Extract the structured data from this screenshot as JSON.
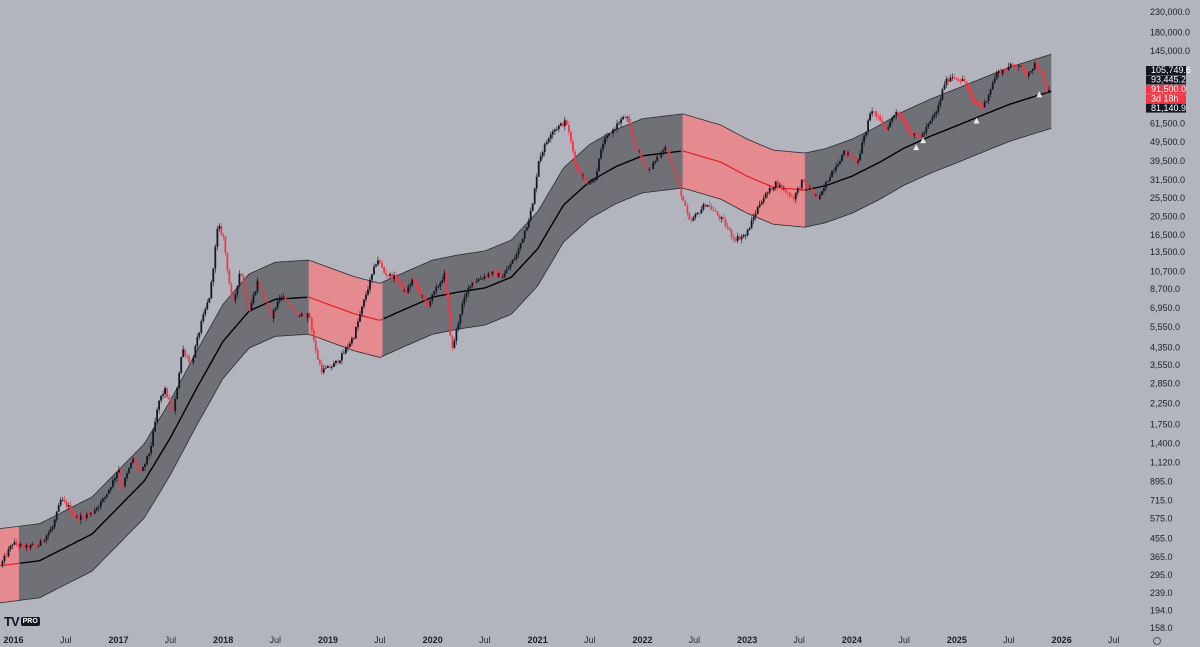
{
  "branding": {
    "logo_mark": "TV",
    "logo_badge": "PRO"
  },
  "chart_data": {
    "type": "candlestick",
    "scale": "log",
    "grid": false,
    "ylim": [
      158,
      230000
    ],
    "xlim": [
      "2015-11-15",
      "2026-10-01"
    ],
    "y_ticks": [
      "230,000.0",
      "180,000.0",
      "145,000.0",
      "61,500.0",
      "49,500.0",
      "39,500.0",
      "31,500.0",
      "25,500.0",
      "20,500.0",
      "16,500.0",
      "13,500.0",
      "10,700.0",
      "8,700.0",
      "6,950.0",
      "5,550.0",
      "4,350.0",
      "3,550.0",
      "2,850.0",
      "2,250.0",
      "1,750.0",
      "1,400.0",
      "1,120.0",
      "895.0",
      "715.0",
      "575.0",
      "455.0",
      "365.0",
      "295.0",
      "239.0",
      "194.0",
      "158.0"
    ],
    "x_ticks": [
      {
        "label": "2016",
        "date": "2016-01-01",
        "year": true
      },
      {
        "label": "Jul",
        "date": "2016-07-01",
        "year": false
      },
      {
        "label": "2017",
        "date": "2017-01-01",
        "year": true
      },
      {
        "label": "Jul",
        "date": "2017-07-01",
        "year": false
      },
      {
        "label": "2018",
        "date": "2018-01-01",
        "year": true
      },
      {
        "label": "Jul",
        "date": "2018-07-01",
        "year": false
      },
      {
        "label": "2019",
        "date": "2019-01-01",
        "year": true
      },
      {
        "label": "Jul",
        "date": "2019-07-01",
        "year": false
      },
      {
        "label": "2020",
        "date": "2020-01-01",
        "year": true
      },
      {
        "label": "Jul",
        "date": "2020-07-01",
        "year": false
      },
      {
        "label": "2021",
        "date": "2021-01-01",
        "year": true
      },
      {
        "label": "Jul",
        "date": "2021-07-01",
        "year": false
      },
      {
        "label": "2022",
        "date": "2022-01-01",
        "year": true
      },
      {
        "label": "Jul",
        "date": "2022-07-01",
        "year": false
      },
      {
        "label": "2023",
        "date": "2023-01-01",
        "year": true
      },
      {
        "label": "Jul",
        "date": "2023-07-01",
        "year": false
      },
      {
        "label": "2024",
        "date": "2024-01-01",
        "year": true
      },
      {
        "label": "Jul",
        "date": "2024-07-01",
        "year": false
      },
      {
        "label": "2025",
        "date": "2025-01-01",
        "year": true
      },
      {
        "label": "Jul",
        "date": "2025-07-01",
        "year": false
      },
      {
        "label": "2026",
        "date": "2026-01-01",
        "year": true
      },
      {
        "label": "Jul",
        "date": "2026-07-01",
        "year": false
      }
    ],
    "price_labels": [
      {
        "text": "105,749.6",
        "bg": "#131722",
        "fg": "#ffffff"
      },
      {
        "text": "93,445.2",
        "bg": "#131722",
        "fg": "#ffffff"
      },
      {
        "text": "91,500.0",
        "bg": "#f23645",
        "fg": "#ffffff"
      },
      {
        "text": "3d 18h",
        "bg": "#f23645",
        "fg": "#ffffff"
      },
      {
        "text": "81,140.9",
        "bg": "#131722",
        "fg": "#ffffff"
      }
    ],
    "colors": {
      "background": "#b2b5be",
      "candle_up": "#131722",
      "candle_down": "#f23645",
      "band_fill": "#4b4d52",
      "band_fill_red": "#e58a8e",
      "center_line": "#000000",
      "center_line_red": "#e0202a",
      "band_edge": "#2a2c30"
    },
    "price_path": [
      [
        "2015-11-20",
        330
      ],
      [
        "2016-01-01",
        430
      ],
      [
        "2016-02-15",
        410
      ],
      [
        "2016-04-01",
        420
      ],
      [
        "2016-05-20",
        520
      ],
      [
        "2016-06-18",
        720
      ],
      [
        "2016-07-15",
        660
      ],
      [
        "2016-08-10",
        580
      ],
      [
        "2016-10-01",
        610
      ],
      [
        "2016-11-15",
        730
      ],
      [
        "2016-12-20",
        920
      ],
      [
        "2017-01-05",
        1060
      ],
      [
        "2017-01-15",
        820
      ],
      [
        "2017-02-25",
        1180
      ],
      [
        "2017-03-25",
        980
      ],
      [
        "2017-04-25",
        1300
      ],
      [
        "2017-05-25",
        2300
      ],
      [
        "2017-06-15",
        2650
      ],
      [
        "2017-07-15",
        2000
      ],
      [
        "2017-08-15",
        4300
      ],
      [
        "2017-09-15",
        3600
      ],
      [
        "2017-10-20",
        5800
      ],
      [
        "2017-11-20",
        8200
      ],
      [
        "2017-12-17",
        18500
      ],
      [
        "2018-01-05",
        16000
      ],
      [
        "2018-02-06",
        7000
      ],
      [
        "2018-03-05",
        11000
      ],
      [
        "2018-04-05",
        6700
      ],
      [
        "2018-05-05",
        9600
      ],
      [
        "2018-06-20",
        6200
      ],
      [
        "2018-07-25",
        8200
      ],
      [
        "2018-09-15",
        6400
      ],
      [
        "2018-11-01",
        6350
      ],
      [
        "2018-11-25",
        4000
      ],
      [
        "2018-12-15",
        3300
      ],
      [
        "2019-01-20",
        3500
      ],
      [
        "2019-02-20",
        3900
      ],
      [
        "2019-04-05",
        5000
      ],
      [
        "2019-05-15",
        8000
      ],
      [
        "2019-06-26",
        12500
      ],
      [
        "2019-07-20",
        10500
      ],
      [
        "2019-09-01",
        9800
      ],
      [
        "2019-09-30",
        8200
      ],
      [
        "2019-10-26",
        9700
      ],
      [
        "2019-12-15",
        7100
      ],
      [
        "2020-02-14",
        10300
      ],
      [
        "2020-03-12",
        4200
      ],
      [
        "2020-04-15",
        7100
      ],
      [
        "2020-05-15",
        9300
      ],
      [
        "2020-07-25",
        10500
      ],
      [
        "2020-09-05",
        10100
      ],
      [
        "2020-10-25",
        13200
      ],
      [
        "2020-12-17",
        23000
      ],
      [
        "2021-01-08",
        40000
      ],
      [
        "2021-02-20",
        56000
      ],
      [
        "2021-04-14",
        63000
      ],
      [
        "2021-05-19",
        37000
      ],
      [
        "2021-06-22",
        31000
      ],
      [
        "2021-07-20",
        31000
      ],
      [
        "2021-08-20",
        49000
      ],
      [
        "2021-10-20",
        64000
      ],
      [
        "2021-11-10",
        67000
      ],
      [
        "2021-12-10",
        48000
      ],
      [
        "2022-01-24",
        35000
      ],
      [
        "2022-03-28",
        47000
      ],
      [
        "2022-05-10",
        30000
      ],
      [
        "2022-06-18",
        19000
      ],
      [
        "2022-08-15",
        24000
      ],
      [
        "2022-10-15",
        19200
      ],
      [
        "2022-11-20",
        15700
      ],
      [
        "2023-01-01",
        16500
      ],
      [
        "2023-02-20",
        24500
      ],
      [
        "2023-04-14",
        30500
      ],
      [
        "2023-06-15",
        25500
      ],
      [
        "2023-07-14",
        31000
      ],
      [
        "2023-09-11",
        25000
      ],
      [
        "2023-10-24",
        34500
      ],
      [
        "2023-12-10",
        44000
      ],
      [
        "2024-01-23",
        39000
      ],
      [
        "2024-03-14",
        73000
      ],
      [
        "2024-05-01",
        57000
      ],
      [
        "2024-06-07",
        71500
      ],
      [
        "2024-08-05",
        53000
      ],
      [
        "2024-09-06",
        53500
      ],
      [
        "2024-10-29",
        72500
      ],
      [
        "2024-11-22",
        99000
      ],
      [
        "2024-12-17",
        108000
      ],
      [
        "2025-02-01",
        101000
      ],
      [
        "2025-02-28",
        80000
      ],
      [
        "2025-04-07",
        75000
      ],
      [
        "2025-05-22",
        111000
      ],
      [
        "2025-07-14",
        122000
      ],
      [
        "2025-08-14",
        124000
      ],
      [
        "2025-09-01",
        108000
      ],
      [
        "2025-10-06",
        126000
      ],
      [
        "2025-10-30",
        108000
      ],
      [
        "2025-11-21",
        82000
      ],
      [
        "2025-11-26",
        91500
      ]
    ],
    "band_path": [
      [
        "2015-11-15",
        330
      ],
      [
        "2016-04-01",
        350
      ],
      [
        "2016-10-01",
        480
      ],
      [
        "2017-04-01",
        900
      ],
      [
        "2017-07-01",
        1500
      ],
      [
        "2017-10-01",
        2700
      ],
      [
        "2018-01-01",
        4700
      ],
      [
        "2018-04-01",
        6700
      ],
      [
        "2018-07-01",
        7700
      ],
      [
        "2018-10-26",
        7900
      ],
      [
        "2019-04-01",
        6500
      ],
      [
        "2019-07-01",
        6000
      ],
      [
        "2019-10-01",
        6900
      ],
      [
        "2020-01-01",
        7900
      ],
      [
        "2020-04-01",
        8400
      ],
      [
        "2020-07-01",
        8800
      ],
      [
        "2020-10-01",
        10000
      ],
      [
        "2021-01-01",
        14000
      ],
      [
        "2021-04-01",
        23500
      ],
      [
        "2021-07-01",
        31000
      ],
      [
        "2021-10-01",
        37000
      ],
      [
        "2022-01-01",
        42000
      ],
      [
        "2022-05-21",
        44500
      ],
      [
        "2022-10-01",
        39000
      ],
      [
        "2023-01-01",
        33000
      ],
      [
        "2023-04-01",
        29000
      ],
      [
        "2023-07-21",
        28000
      ],
      [
        "2023-10-01",
        29500
      ],
      [
        "2024-01-01",
        33000
      ],
      [
        "2024-04-01",
        38500
      ],
      [
        "2024-07-01",
        46000
      ],
      [
        "2024-10-01",
        53000
      ],
      [
        "2025-01-01",
        60000
      ],
      [
        "2025-04-01",
        68000
      ],
      [
        "2025-07-01",
        77000
      ],
      [
        "2025-10-01",
        85000
      ],
      [
        "2025-11-26",
        90000
      ]
    ],
    "band_red_segments": [
      [
        "2015-11-15",
        "2016-01-20"
      ],
      [
        "2018-10-26",
        "2019-07-10"
      ],
      [
        "2022-05-21",
        "2023-07-21"
      ]
    ],
    "band_width_factor": 1.55,
    "signal_markers": [
      [
        "2024-08-12",
        46000
      ],
      [
        "2024-09-05",
        50000
      ],
      [
        "2025-03-10",
        63000
      ],
      [
        "2025-10-15",
        86000
      ]
    ]
  }
}
